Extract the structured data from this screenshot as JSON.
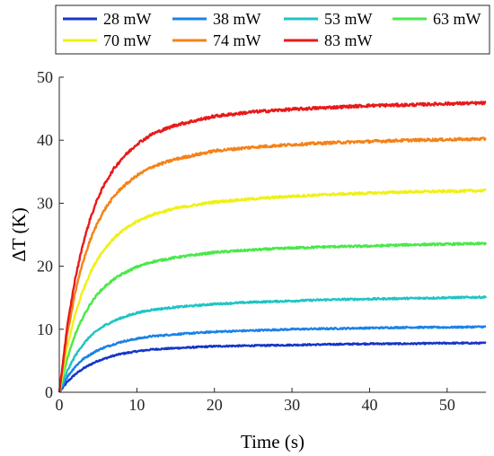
{
  "chart_data": {
    "type": "line",
    "title": "",
    "xlabel": "Time (s)",
    "ylabel": "ΔT (K)",
    "xlim": [
      0,
      55
    ],
    "ylim": [
      0,
      50
    ],
    "xticks": [
      0,
      10,
      20,
      30,
      40,
      50
    ],
    "yticks": [
      0,
      10,
      20,
      30,
      40,
      50
    ],
    "x": [
      0,
      1,
      2,
      3,
      4,
      5,
      6,
      7,
      8,
      10,
      12,
      15,
      20,
      25,
      30,
      35,
      40,
      45,
      50,
      55
    ],
    "series": [
      {
        "name": "28 mW",
        "color": "#1535c8",
        "values": [
          0,
          1.6,
          2.8,
          3.7,
          4.4,
          5.0,
          5.4,
          5.8,
          6.1,
          6.5,
          6.8,
          7.0,
          7.3,
          7.4,
          7.5,
          7.6,
          7.7,
          7.7,
          7.8,
          7.8
        ]
      },
      {
        "name": "38 mW",
        "color": "#1a82e8",
        "values": [
          0,
          2.4,
          4.0,
          5.2,
          6.0,
          6.7,
          7.2,
          7.6,
          8.0,
          8.5,
          8.9,
          9.2,
          9.6,
          9.8,
          10.0,
          10.1,
          10.2,
          10.3,
          10.3,
          10.4
        ]
      },
      {
        "name": "53 mW",
        "color": "#1fc4c4",
        "values": [
          0,
          3.3,
          5.7,
          7.5,
          8.9,
          9.9,
          10.7,
          11.3,
          11.8,
          12.6,
          13.1,
          13.5,
          14.0,
          14.3,
          14.5,
          14.7,
          14.8,
          14.9,
          15.0,
          15.1
        ]
      },
      {
        "name": "63 mW",
        "color": "#4ae84a",
        "values": [
          0,
          5.2,
          9.0,
          11.8,
          14.0,
          15.7,
          16.9,
          17.9,
          18.7,
          19.9,
          20.7,
          21.4,
          22.2,
          22.6,
          22.9,
          23.1,
          23.2,
          23.4,
          23.5,
          23.6
        ]
      },
      {
        "name": "70 mW",
        "color": "#f0f016",
        "values": [
          0,
          7.0,
          12.2,
          16.0,
          19.0,
          21.3,
          23.0,
          24.4,
          25.5,
          27.1,
          28.2,
          29.2,
          30.2,
          30.7,
          31.1,
          31.4,
          31.6,
          31.8,
          31.9,
          32.0
        ]
      },
      {
        "name": "74 mW",
        "color": "#f58218",
        "values": [
          0,
          9.0,
          15.6,
          20.5,
          24.2,
          27.1,
          29.3,
          31.0,
          32.4,
          34.4,
          35.8,
          37.0,
          38.3,
          38.9,
          39.3,
          39.6,
          39.8,
          40.0,
          40.1,
          40.2
        ]
      },
      {
        "name": "83 mW",
        "color": "#e81a1a",
        "values": [
          0,
          10.2,
          17.7,
          23.3,
          27.6,
          30.9,
          33.4,
          35.4,
          37.0,
          39.4,
          41.0,
          42.4,
          43.8,
          44.5,
          44.9,
          45.2,
          45.5,
          45.6,
          45.8,
          45.9
        ]
      }
    ],
    "grid": false,
    "legend_position": "top"
  }
}
